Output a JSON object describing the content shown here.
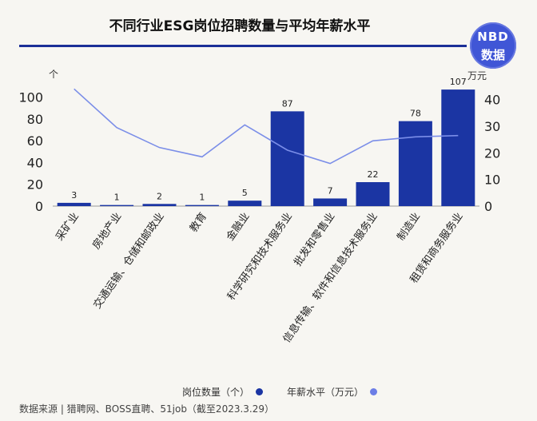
{
  "title": "不同行业ESG岗位招聘数量与平均年薪水平",
  "logo": {
    "line1": "NBD",
    "line2": "数据"
  },
  "left_unit": "个",
  "right_unit": "万元",
  "footer": "数据来源 | 猎聘网、BOSS直聘、51job（截至2023.3.29）",
  "colors": {
    "bar": "#1b35a3",
    "line": "#7b8ee8",
    "rule": "#1b2f97"
  },
  "chart_data": {
    "type": "bar+line",
    "categories": [
      "采矿业",
      "房地产业",
      "交通运输、仓储和邮政业",
      "教育",
      "金融业",
      "科学研究和技术服务业",
      "批发和零售业",
      "信息传输、软件和信息技术服务业",
      "制造业",
      "租赁和商务服务业"
    ],
    "series": [
      {
        "name": "岗位数量（个）",
        "type": "bar",
        "axis": "left",
        "values": [
          3,
          1,
          2,
          1,
          5,
          87,
          7,
          22,
          78,
          107
        ]
      },
      {
        "name": "年薪水平（万元）",
        "type": "line",
        "axis": "right",
        "values": [
          44,
          29.5,
          22,
          18.5,
          30.5,
          21,
          16,
          24.5,
          26,
          26.5
        ]
      }
    ],
    "left_axis": {
      "ticks": [
        0,
        20,
        40,
        60,
        80,
        100
      ],
      "ylim": [
        0,
        110
      ]
    },
    "right_axis": {
      "ticks": [
        0,
        10,
        20,
        30,
        40
      ],
      "ylim": [
        0,
        45
      ]
    },
    "legend_position": "bottom",
    "grid": false
  }
}
